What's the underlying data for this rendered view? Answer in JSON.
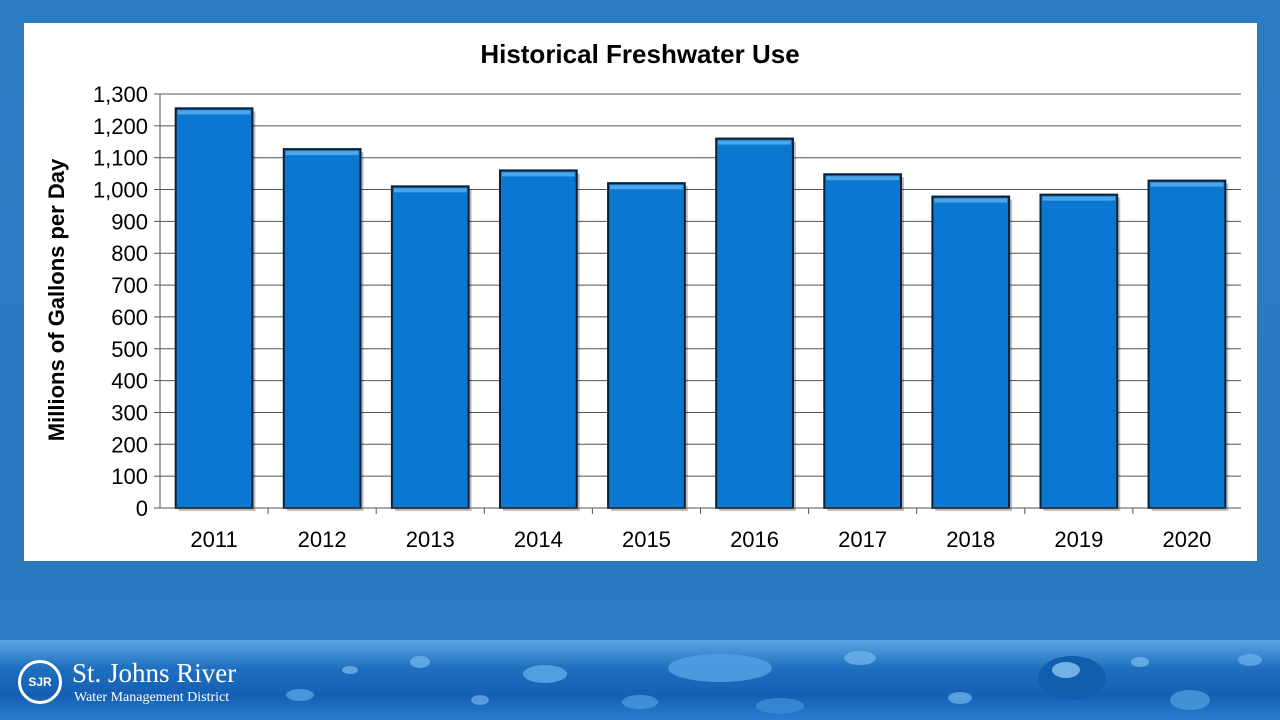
{
  "chart_data": {
    "type": "bar",
    "title": "Historical Freshwater Use",
    "xlabel": "",
    "ylabel": "Millions of Gallons per Day",
    "categories": [
      "2011",
      "2012",
      "2013",
      "2014",
      "2015",
      "2016",
      "2017",
      "2018",
      "2019",
      "2020"
    ],
    "values": [
      1255,
      1127,
      1010,
      1060,
      1020,
      1160,
      1048,
      978,
      984,
      1028
    ],
    "ylim": [
      0,
      1300
    ],
    "ytick_step": 100,
    "ytick_labels": [
      "0",
      "100",
      "200",
      "300",
      "400",
      "500",
      "600",
      "700",
      "800",
      "900",
      "1,000",
      "1,100",
      "1,200",
      "1,300"
    ],
    "grid": true,
    "legend": "none",
    "bar_color": "#0a78d2",
    "bar_edge_color": "#0b1f33"
  },
  "logo": {
    "initials": "SJR",
    "name": "St. Johns River",
    "subtitle": "Water Management District"
  },
  "colors": {
    "slide_background": "#2d7cc2",
    "panel_background": "#ffffff"
  }
}
